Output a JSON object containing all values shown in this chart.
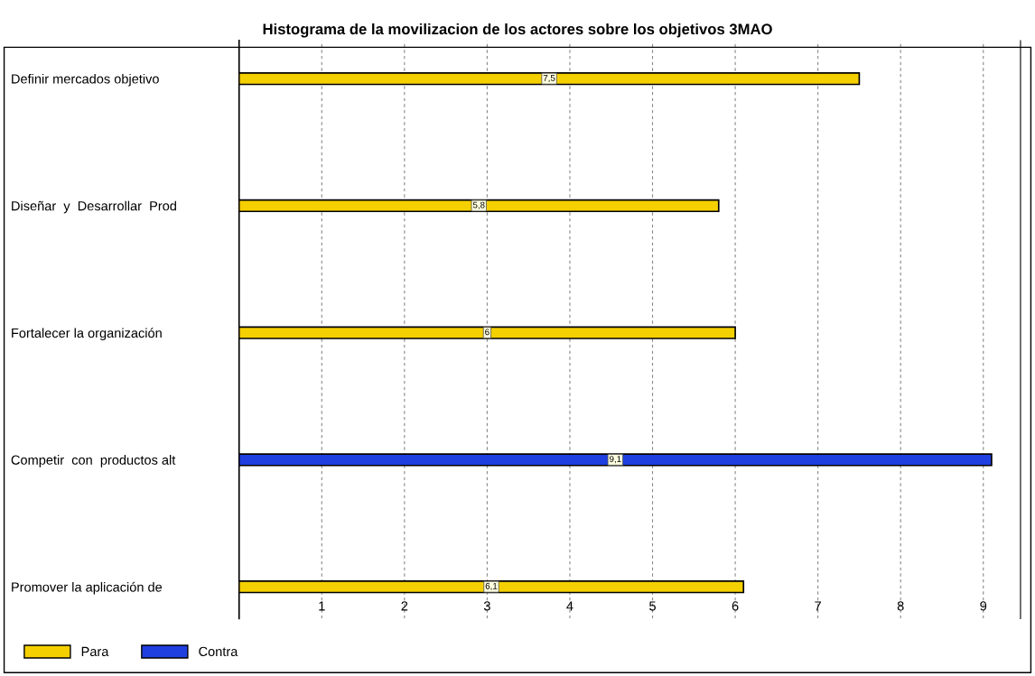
{
  "chart_data": {
    "type": "bar",
    "orientation": "horizontal",
    "title": "Histograma de la movilizacion de los actores sobre los objetivos 3MAO",
    "categories": [
      "Definir mercados objetivo",
      "Diseñar  y  Desarrollar  Prod",
      "Fortalecer la organización",
      "Competir  con  productos alt",
      "Promover la aplicación de"
    ],
    "series": [
      {
        "name": "Para",
        "color": "#f5d000",
        "values": [
          7.5,
          5.8,
          6,
          null,
          6.1
        ],
        "value_labels": [
          "7,5",
          "5,8",
          "6",
          null,
          "6,1"
        ]
      },
      {
        "name": "Contra",
        "color": "#1f3fe0",
        "values": [
          null,
          null,
          null,
          9.1,
          null
        ],
        "value_labels": [
          null,
          null,
          null,
          "9,1",
          null
        ]
      }
    ],
    "xlim": [
      0,
      9.45
    ],
    "xticks": [
      1,
      2,
      3,
      4,
      5,
      6,
      7,
      8,
      9
    ],
    "grid": "x",
    "legend": "bottom left"
  }
}
